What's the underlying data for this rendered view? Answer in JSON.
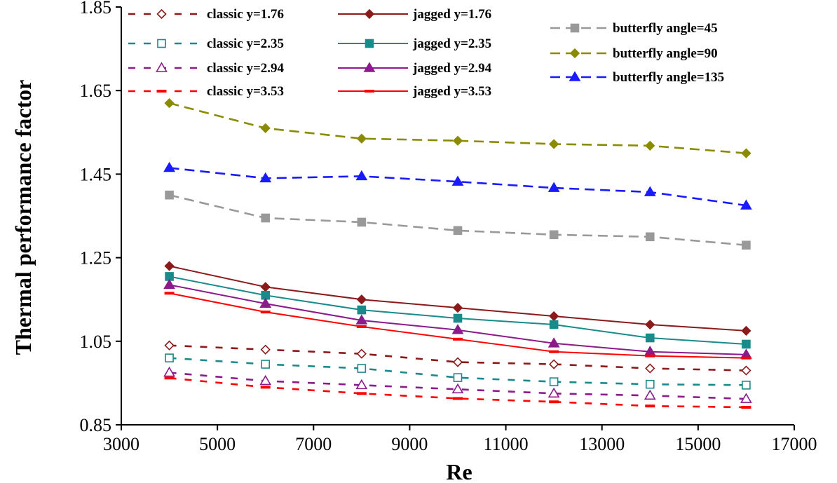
{
  "chart_data": {
    "type": "line",
    "xlabel": "Re",
    "ylabel": "Thermal performance factor",
    "xlim": [
      3000,
      17000
    ],
    "ylim": [
      0.85,
      1.85
    ],
    "x_ticks": [
      3000,
      5000,
      7000,
      9000,
      11000,
      13000,
      15000,
      17000
    ],
    "y_ticks": [
      0.85,
      1.05,
      1.25,
      1.45,
      1.65,
      1.85
    ],
    "x_tick_labels": [
      "3000",
      "5000",
      "7000",
      "9000",
      "11000",
      "13000",
      "15000",
      "17000"
    ],
    "y_tick_labels": [
      "0.85",
      "1.05",
      "1.25",
      "1.45",
      "1.65",
      "1.85"
    ],
    "grid": false,
    "legend_position": "top",
    "x": [
      4000,
      6000,
      8000,
      10000,
      12000,
      14000,
      16000
    ],
    "series": [
      {
        "name": "classic y=1.76",
        "color": "#8b1a1a",
        "dash": "dash-wide",
        "marker": "diamond-open",
        "values": [
          1.04,
          1.03,
          1.02,
          1.0,
          0.995,
          0.985,
          0.98
        ]
      },
      {
        "name": "classic y=2.35",
        "color": "#1a8a8a",
        "dash": "dash-wide",
        "marker": "square-open",
        "values": [
          1.01,
          0.995,
          0.985,
          0.963,
          0.953,
          0.947,
          0.945
        ]
      },
      {
        "name": "classic y=2.94",
        "color": "#8b1a8b",
        "dash": "dash-wide",
        "marker": "triangle-open",
        "values": [
          0.975,
          0.955,
          0.945,
          0.935,
          0.925,
          0.92,
          0.912
        ]
      },
      {
        "name": "classic y=3.53",
        "color": "#ff0000",
        "dash": "dash-wide",
        "marker": "dash",
        "values": [
          0.962,
          0.94,
          0.925,
          0.913,
          0.905,
          0.895,
          0.892
        ]
      },
      {
        "name": "jagged y=1.76",
        "color": "#8b1a1a",
        "dash": "solid",
        "marker": "diamond-filled",
        "values": [
          1.23,
          1.18,
          1.15,
          1.13,
          1.11,
          1.09,
          1.075
        ]
      },
      {
        "name": "jagged y=2.35",
        "color": "#1a8a8a",
        "dash": "solid",
        "marker": "square-filled",
        "values": [
          1.205,
          1.16,
          1.125,
          1.105,
          1.09,
          1.058,
          1.043
        ]
      },
      {
        "name": "jagged y=2.94",
        "color": "#8b1a8b",
        "dash": "solid",
        "marker": "triangle-filled",
        "values": [
          1.185,
          1.14,
          1.1,
          1.077,
          1.045,
          1.025,
          1.018
        ]
      },
      {
        "name": "jagged y=3.53",
        "color": "#ff0000",
        "dash": "solid",
        "marker": "dash",
        "values": [
          1.165,
          1.12,
          1.085,
          1.055,
          1.025,
          1.015,
          1.01
        ]
      },
      {
        "name": "butterfly angle=45",
        "color": "#999999",
        "dash": "dash-long",
        "marker": "square-filled",
        "values": [
          1.4,
          1.345,
          1.335,
          1.315,
          1.305,
          1.3,
          1.28
        ]
      },
      {
        "name": "butterfly angle=90",
        "color": "#8b8b00",
        "dash": "dash-long",
        "marker": "diamond-filled",
        "values": [
          1.62,
          1.56,
          1.535,
          1.53,
          1.522,
          1.518,
          1.5
        ]
      },
      {
        "name": "butterfly angle=135",
        "color": "#1a1aff",
        "dash": "dash-long",
        "marker": "triangle-filled",
        "values": [
          1.465,
          1.44,
          1.445,
          1.432,
          1.417,
          1.407,
          1.375
        ]
      }
    ]
  }
}
